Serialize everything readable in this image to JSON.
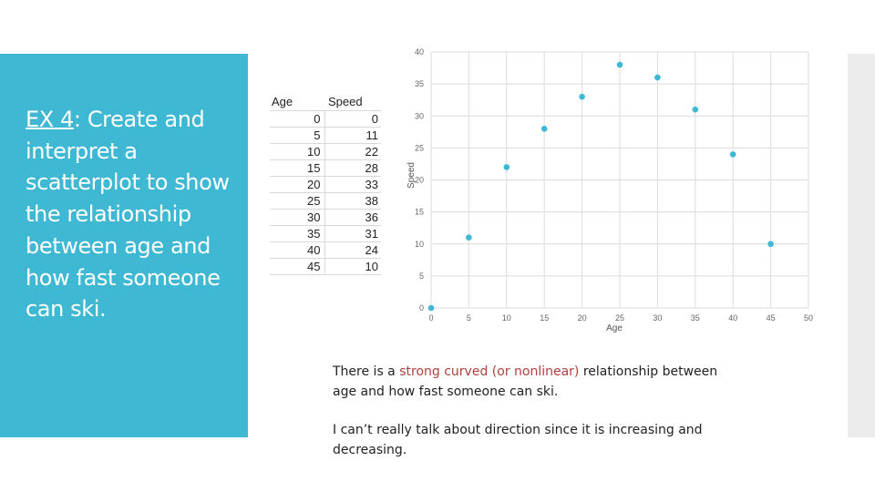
{
  "slide": {
    "ex_label": "EX 4",
    "ex_colon": ":",
    "title_rest": " Create and interpret a scatterplot to show the relationship between age and how fast someone can ski."
  },
  "table": {
    "headers": [
      "Age",
      "Speed"
    ],
    "rows": [
      [
        0,
        0
      ],
      [
        5,
        11
      ],
      [
        10,
        22
      ],
      [
        15,
        28
      ],
      [
        20,
        33
      ],
      [
        25,
        38
      ],
      [
        30,
        36
      ],
      [
        35,
        31
      ],
      [
        40,
        24
      ],
      [
        45,
        10
      ]
    ]
  },
  "chart_data": {
    "type": "scatter",
    "title": "",
    "xlabel": "Age",
    "ylabel": "Speed",
    "x": [
      0,
      5,
      10,
      15,
      20,
      25,
      30,
      35,
      40,
      45
    ],
    "y": [
      0,
      11,
      22,
      28,
      33,
      38,
      36,
      31,
      24,
      10
    ],
    "xlim": [
      0,
      50
    ],
    "ylim": [
      0,
      40
    ],
    "xticks": [
      0,
      5,
      10,
      15,
      20,
      25,
      30,
      35,
      40,
      45,
      50
    ],
    "yticks": [
      0,
      5,
      10,
      15,
      20,
      25,
      30,
      35,
      40
    ],
    "grid": true,
    "point_color": "#3fb8d3"
  },
  "caption": {
    "p1_before": "There is a ",
    "p1_highlight": "strong curved (or nonlinear)",
    "p1_after": " relationship between age and how fast someone can ski.",
    "p2": "I can’t really talk about direction since it is increasing and decreasing."
  },
  "colors": {
    "panel": "#3fb8d3",
    "highlight": "#b0413e"
  }
}
